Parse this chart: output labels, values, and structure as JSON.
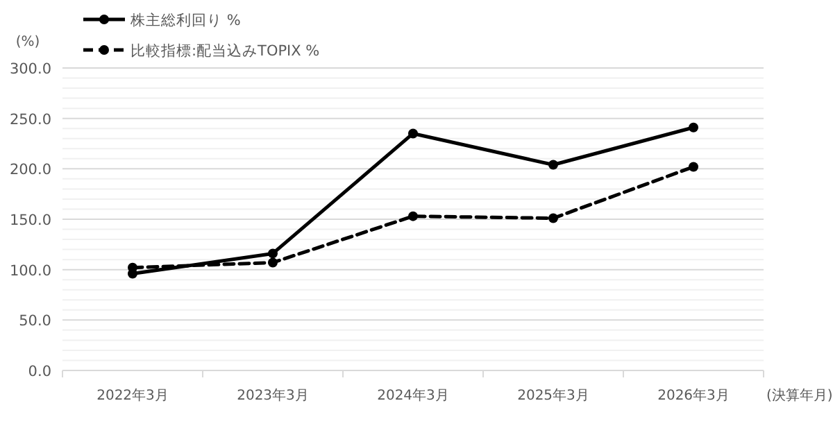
{
  "chart_data": {
    "type": "line",
    "ylabel": "(%)",
    "xlabel": "(決算年月)",
    "categories": [
      "2022年3月",
      "2023年3月",
      "2024年3月",
      "2025年3月",
      "2026年3月"
    ],
    "series": [
      {
        "name": "株主総利回り %",
        "color": "#000000",
        "line_style": "solid",
        "values": [
          96,
          116,
          235,
          204,
          241
        ]
      },
      {
        "name": "比較指標:配当込みTOPIX %",
        "color": "#000000",
        "line_style": "dashed",
        "values": [
          102,
          107,
          153,
          151,
          202
        ]
      }
    ],
    "ylim": [
      0,
      300
    ],
    "yticks": [
      "0.0",
      {
        "value": 10,
        "label": null
      },
      {
        "value": 20,
        "label": null
      },
      {
        "value": 30,
        "label": null
      },
      {
        "value": 40,
        "label": null
      },
      {
        "value": 50,
        "label": "50.0"
      },
      {
        "value": 60,
        "label": null
      },
      {
        "value": 70,
        "label": null
      },
      {
        "value": 80,
        "label": null
      },
      {
        "value": 90,
        "label": null
      },
      {
        "value": 100,
        "label": "100.0"
      },
      {
        "value": 110,
        "label": null
      },
      {
        "value": 120,
        "label": null
      },
      {
        "value": 130,
        "label": null
      },
      {
        "value": 140,
        "label": null
      },
      {
        "value": 150,
        "label": "150.0"
      },
      {
        "value": 160,
        "label": null
      },
      {
        "value": 170,
        "label": null
      },
      {
        "value": 180,
        "label": null
      },
      {
        "value": 190,
        "label": null
      },
      {
        "value": 200,
        "label": "200.0"
      },
      {
        "value": 210,
        "label": null
      },
      {
        "value": 220,
        "label": null
      },
      {
        "value": 230,
        "label": null
      },
      {
        "value": 240,
        "label": null
      },
      {
        "value": 250,
        "label": "250.0"
      },
      {
        "value": 260,
        "label": null
      },
      {
        "value": 270,
        "label": null
      },
      {
        "value": 280,
        "label": null
      },
      {
        "value": 290,
        "label": null
      },
      {
        "value": 300,
        "label": "300.0"
      }
    ],
    "grid": "y",
    "legend": "top left",
    "marker": "circle"
  }
}
